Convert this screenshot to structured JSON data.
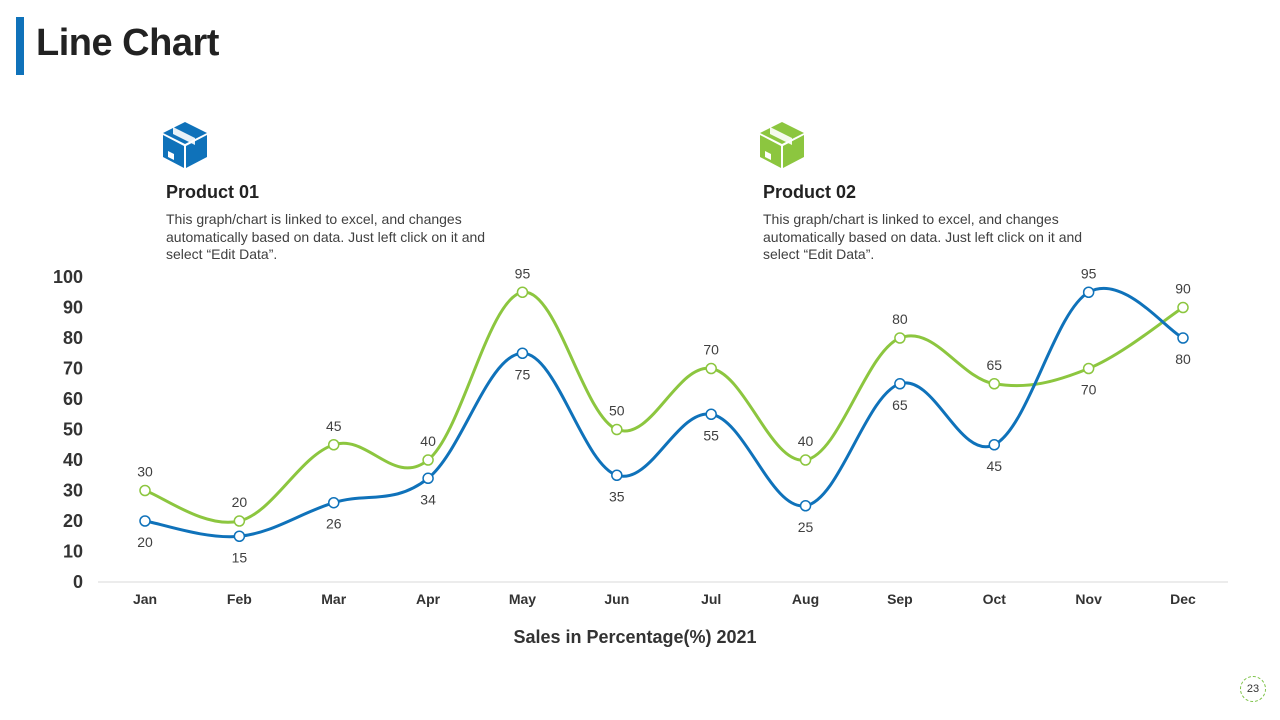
{
  "slide": {
    "title": "Line Chart",
    "page_number": "23"
  },
  "products": [
    {
      "title": "Product 01",
      "description": "This graph/chart is linked to excel, and changes automatically based on data. Just left click on it and select “Edit Data”.",
      "icon": "package-box-icon",
      "color": "#0f72ba"
    },
    {
      "title": "Product 02",
      "description": "This graph/chart is linked to excel, and changes automatically based on data. Just left click on it and select “Edit Data”.",
      "icon": "package-box-icon",
      "color": "#8cc63f"
    }
  ],
  "chart_data": {
    "type": "line",
    "categories": [
      "Jan",
      "Feb",
      "Mar",
      "Apr",
      "May",
      "Jun",
      "Jul",
      "Aug",
      "Sep",
      "Oct",
      "Nov",
      "Dec"
    ],
    "series": [
      {
        "values": [
          20,
          15,
          26,
          34,
          75,
          35,
          55,
          25,
          65,
          45,
          95,
          80
        ],
        "color": "#0f72ba"
      },
      {
        "values": [
          30,
          20,
          45,
          40,
          95,
          50,
          70,
          40,
          80,
          65,
          70,
          90
        ],
        "color": "#8cc63f"
      }
    ],
    "xlabel": "Sales in Percentage(%) 2021",
    "ylabel": "",
    "ylim": [
      0,
      100
    ],
    "yticks": [
      0,
      10,
      20,
      30,
      40,
      50,
      60,
      70,
      80,
      90,
      100
    ],
    "grid": false,
    "data_labels": true,
    "smooth": true
  }
}
